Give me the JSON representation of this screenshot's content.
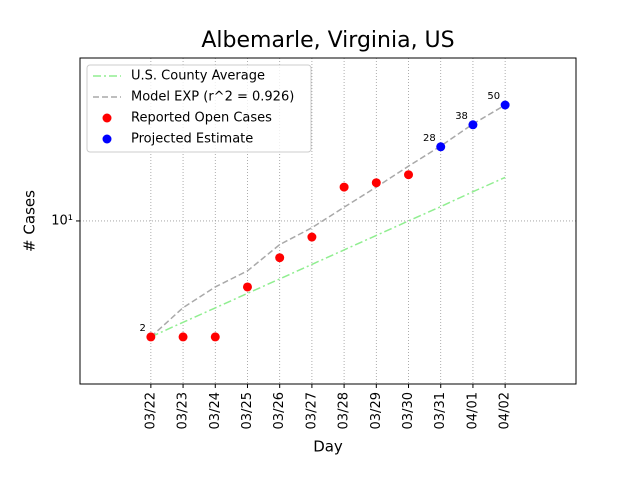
{
  "chart_data": {
    "type": "line",
    "title": "Albemarle, Virginia, US",
    "xlabel": "Day",
    "ylabel": "# Cases",
    "categories": [
      "03/22",
      "03/23",
      "03/24",
      "03/25",
      "03/26",
      "03/27",
      "03/28",
      "03/29",
      "03/30",
      "03/31",
      "04/01",
      "04/02"
    ],
    "ylog": true,
    "ylim": [
      1.04,
      96
    ],
    "yticks": [
      {
        "value": 10,
        "label": "10¹"
      }
    ],
    "grid": true,
    "legend": "upper left",
    "series": [
      {
        "name": "U.S. County Average",
        "kind": "line",
        "linestyle": "dashdot",
        "color": "#90ee90",
        "values": [
          2,
          2.45,
          2.99,
          3.66,
          4.47,
          5.47,
          6.69,
          8.18,
          10.0,
          12.2,
          15.0,
          18.3
        ]
      },
      {
        "name": "Model EXP (r^2 = 0.926)",
        "kind": "line",
        "linestyle": "dashed",
        "color": "#a9a9a9",
        "values": [
          2,
          3.0,
          4.0,
          5.0,
          7.2,
          9.1,
          12.1,
          16,
          21.4,
          28.3,
          38.4,
          50
        ]
      },
      {
        "name": "Reported Open Cases",
        "kind": "scatter",
        "color": "#ff0000",
        "values": [
          2,
          2,
          2,
          4,
          6,
          8,
          16,
          17,
          19,
          null,
          null,
          null
        ],
        "value_labels": [
          "2",
          null,
          null,
          null,
          null,
          null,
          null,
          null,
          null,
          null,
          null,
          null
        ]
      },
      {
        "name": "Projected Estimate",
        "kind": "scatter",
        "color": "#0000ff",
        "values": [
          null,
          null,
          null,
          null,
          null,
          null,
          null,
          null,
          null,
          28,
          38,
          50
        ],
        "value_labels": [
          null,
          null,
          null,
          null,
          null,
          null,
          null,
          null,
          null,
          "28",
          "38",
          "50"
        ]
      }
    ]
  }
}
